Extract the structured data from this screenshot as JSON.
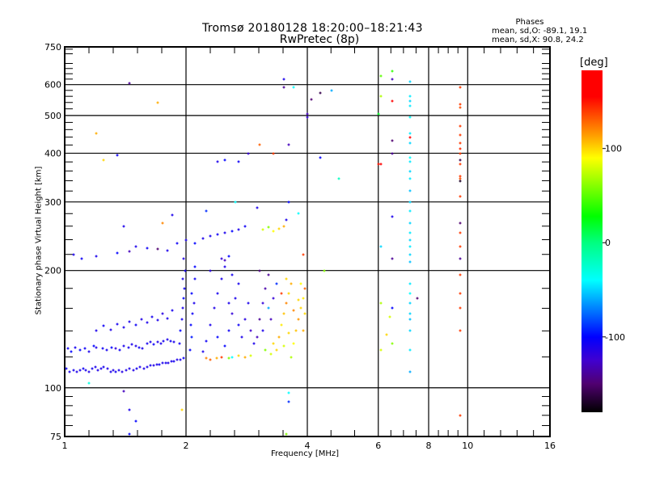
{
  "header": {
    "title_line1": "Tromsø 20180128 18:20:00–18:21:43",
    "title_line2": "RwPretec (8p)",
    "phases_heading": "Phases",
    "phases_o": "mean, sd,O:  -89.1, 19.1",
    "phases_x": "mean, sd,X:   90.8, 24.2"
  },
  "chart_data": {
    "type": "scatter",
    "title": "Tromsø 20180128 18:20:00–18:21:43 RwPretec (8p)",
    "xlabel": "Frequency [MHz]",
    "ylabel": "Stationary phase Virtual Height [km]",
    "xscale": "log",
    "yscale": "log",
    "xlim": [
      1,
      16
    ],
    "ylim": [
      75,
      750
    ],
    "xticks": [
      1,
      2,
      4,
      6,
      8,
      10,
      16
    ],
    "yticks": [
      75,
      100,
      200,
      300,
      400,
      500,
      600,
      750
    ],
    "xgrid": [
      2,
      4,
      6,
      8,
      10
    ],
    "ygrid": [
      100,
      200,
      300,
      400,
      500,
      600
    ],
    "grid": true,
    "colorbar": {
      "label": "[deg]",
      "ticks": [
        100,
        0,
        -100
      ],
      "range": [
        -180,
        183
      ],
      "stops": [
        [
          -180,
          "#000000"
        ],
        [
          -150,
          "#500070"
        ],
        [
          -125,
          "#4000d0"
        ],
        [
          -100,
          "#0000ff"
        ],
        [
          -70,
          "#0080ff"
        ],
        [
          -40,
          "#00ffff"
        ],
        [
          0,
          "#00ff80"
        ],
        [
          28,
          "#00ff00"
        ],
        [
          90,
          "#ffff00"
        ],
        [
          115,
          "#ff9900"
        ],
        [
          155,
          "#ff0000"
        ],
        [
          183,
          "#ff0000"
        ]
      ]
    },
    "point_fields": [
      "frequency_MHz",
      "height_km",
      "phase_deg"
    ],
    "points": [
      [
        1.01,
        112,
        -105
      ],
      [
        1.03,
        110,
        -110
      ],
      [
        1.05,
        111,
        -108
      ],
      [
        1.07,
        110,
        -112
      ],
      [
        1.09,
        111,
        -110
      ],
      [
        1.11,
        112,
        -105
      ],
      [
        1.13,
        111,
        -110
      ],
      [
        1.15,
        110,
        -112
      ],
      [
        1.17,
        112,
        -108
      ],
      [
        1.19,
        113,
        -110
      ],
      [
        1.21,
        111,
        -112
      ],
      [
        1.23,
        112,
        -110
      ],
      [
        1.25,
        113,
        -108
      ],
      [
        1.28,
        112,
        -112
      ],
      [
        1.3,
        110,
        -110
      ],
      [
        1.32,
        111,
        -112
      ],
      [
        1.34,
        110,
        -108
      ],
      [
        1.36,
        111,
        -110
      ],
      [
        1.39,
        110,
        -114
      ],
      [
        1.42,
        111,
        -112
      ],
      [
        1.45,
        112,
        -110
      ],
      [
        1.48,
        111,
        -112
      ],
      [
        1.51,
        112,
        -108
      ],
      [
        1.54,
        113,
        -110
      ],
      [
        1.57,
        112,
        -112
      ],
      [
        1.6,
        113,
        -110
      ],
      [
        1.63,
        114,
        -108
      ],
      [
        1.66,
        114,
        -112
      ],
      [
        1.69,
        115,
        -110
      ],
      [
        1.72,
        115,
        -105
      ],
      [
        1.75,
        116,
        -110
      ],
      [
        1.78,
        116,
        -108
      ],
      [
        1.81,
        116,
        -112
      ],
      [
        1.84,
        117,
        -110
      ],
      [
        1.87,
        117,
        -108
      ],
      [
        1.9,
        118,
        -112
      ],
      [
        1.94,
        118,
        -110
      ],
      [
        1.97,
        119,
        -105
      ],
      [
        1.02,
        126,
        -105
      ],
      [
        1.04,
        124,
        -100
      ],
      [
        1.06,
        127,
        -108
      ],
      [
        1.09,
        125,
        -100
      ],
      [
        1.12,
        126,
        -105
      ],
      [
        1.15,
        124,
        -110
      ],
      [
        1.18,
        128,
        -100
      ],
      [
        1.2,
        127,
        -112
      ],
      [
        1.24,
        126,
        -105
      ],
      [
        1.27,
        125,
        -108
      ],
      [
        1.31,
        127,
        -100
      ],
      [
        1.34,
        126,
        -120
      ],
      [
        1.37,
        125,
        -105
      ],
      [
        1.4,
        128,
        -110
      ],
      [
        1.44,
        127,
        -108
      ],
      [
        1.47,
        129,
        -110
      ],
      [
        1.5,
        128,
        -112
      ],
      [
        1.53,
        127,
        -105
      ],
      [
        1.56,
        126,
        -110
      ],
      [
        1.6,
        130,
        -108
      ],
      [
        1.63,
        131,
        -110
      ],
      [
        1.66,
        129,
        -105
      ],
      [
        1.7,
        131,
        -112
      ],
      [
        1.73,
        130,
        -110
      ],
      [
        1.76,
        132,
        -108
      ],
      [
        1.8,
        133,
        -110
      ],
      [
        1.83,
        132,
        -105
      ],
      [
        1.87,
        131,
        -110
      ],
      [
        1.2,
        140,
        -110
      ],
      [
        1.25,
        144,
        -105
      ],
      [
        1.3,
        141,
        -112
      ],
      [
        1.35,
        146,
        -108
      ],
      [
        1.4,
        143,
        -110
      ],
      [
        1.45,
        148,
        -110
      ],
      [
        1.5,
        145,
        -105
      ],
      [
        1.55,
        150,
        -112
      ],
      [
        1.6,
        147,
        -110
      ],
      [
        1.65,
        152,
        -108
      ],
      [
        1.7,
        149,
        -110
      ],
      [
        1.75,
        155,
        -115
      ],
      [
        1.8,
        151,
        -110
      ],
      [
        1.85,
        158,
        -108
      ],
      [
        1.93,
        130,
        -105
      ],
      [
        1.94,
        140,
        -100
      ],
      [
        1.95,
        150,
        -108
      ],
      [
        1.96,
        160,
        -110
      ],
      [
        1.97,
        170,
        -100
      ],
      [
        1.98,
        180,
        -105
      ],
      [
        1.96,
        190,
        -110
      ],
      [
        1.99,
        200,
        -108
      ],
      [
        1.97,
        215,
        -112
      ],
      [
        2.05,
        125,
        -100
      ],
      [
        2.07,
        135,
        -95
      ],
      [
        2.06,
        145,
        -100
      ],
      [
        2.08,
        155,
        -105
      ],
      [
        2.09,
        165,
        -110
      ],
      [
        2.07,
        175,
        -100
      ],
      [
        2.1,
        190,
        -105
      ],
      [
        2.1,
        205,
        -100
      ],
      [
        2.2,
        124,
        -110
      ],
      [
        2.25,
        132,
        -105
      ],
      [
        2.3,
        145,
        -110
      ],
      [
        2.35,
        160,
        -112
      ],
      [
        2.4,
        175,
        -108
      ],
      [
        2.45,
        190,
        -110
      ],
      [
        2.5,
        128,
        -100
      ],
      [
        2.55,
        140,
        -105
      ],
      [
        2.6,
        155,
        -120
      ],
      [
        2.65,
        170,
        -110
      ],
      [
        2.7,
        185,
        -108
      ],
      [
        2.75,
        135,
        -110
      ],
      [
        2.8,
        150,
        -115
      ],
      [
        2.85,
        165,
        -110
      ],
      [
        2.9,
        140,
        -125
      ],
      [
        2.95,
        130,
        -110
      ],
      [
        2.3,
        200,
        -115
      ],
      [
        2.5,
        205,
        -110
      ],
      [
        2.45,
        215,
        -120
      ],
      [
        2.6,
        195,
        -108
      ],
      [
        2.4,
        135,
        -100
      ],
      [
        2.55,
        165,
        -110
      ],
      [
        2.7,
        145,
        -105
      ],
      [
        2.25,
        119,
        120
      ],
      [
        2.3,
        118,
        130
      ],
      [
        2.38,
        119,
        110
      ],
      [
        2.45,
        120,
        140
      ],
      [
        2.55,
        119,
        60
      ],
      [
        2.6,
        120,
        -40
      ],
      [
        2.7,
        121,
        100
      ],
      [
        2.8,
        120,
        110
      ],
      [
        2.9,
        121,
        80
      ],
      [
        3.0,
        135,
        -130
      ],
      [
        3.05,
        150,
        -140
      ],
      [
        3.1,
        165,
        -120
      ],
      [
        3.15,
        180,
        -135
      ],
      [
        3.2,
        195,
        -140
      ],
      [
        3.1,
        140,
        -110
      ],
      [
        3.25,
        150,
        -130
      ],
      [
        3.3,
        170,
        -120
      ],
      [
        3.35,
        185,
        -90
      ],
      [
        3.15,
        125,
        60
      ],
      [
        3.25,
        122,
        80
      ],
      [
        3.3,
        130,
        100
      ],
      [
        3.05,
        200,
        -145
      ],
      [
        3.2,
        160,
        -60
      ],
      [
        3.35,
        125,
        100
      ],
      [
        3.4,
        135,
        110
      ],
      [
        3.45,
        145,
        95
      ],
      [
        3.5,
        155,
        105
      ],
      [
        3.55,
        165,
        120
      ],
      [
        3.6,
        175,
        100
      ],
      [
        3.65,
        185,
        110
      ],
      [
        3.7,
        130,
        90
      ],
      [
        3.75,
        140,
        105
      ],
      [
        3.8,
        150,
        115
      ],
      [
        3.85,
        160,
        100
      ],
      [
        3.9,
        170,
        95
      ],
      [
        3.95,
        180,
        130
      ],
      [
        3.5,
        128,
        80
      ],
      [
        3.6,
        138,
        100
      ],
      [
        3.7,
        158,
        120
      ],
      [
        3.8,
        168,
        100
      ],
      [
        3.9,
        140,
        110
      ],
      [
        3.65,
        120,
        70
      ],
      [
        3.45,
        175,
        140
      ],
      [
        3.55,
        190,
        100
      ],
      [
        3.85,
        185,
        90
      ],
      [
        3.95,
        155,
        100
      ],
      [
        1.05,
        220,
        -110
      ],
      [
        1.1,
        215,
        -105
      ],
      [
        1.2,
        218,
        -110
      ],
      [
        1.35,
        222,
        -100
      ],
      [
        1.45,
        224,
        -130
      ],
      [
        1.5,
        230,
        -110
      ],
      [
        1.6,
        228,
        -105
      ],
      [
        1.7,
        227,
        -150
      ],
      [
        1.8,
        225,
        -110
      ],
      [
        1.9,
        235,
        -105
      ],
      [
        2.0,
        240,
        -110
      ],
      [
        2.1,
        235,
        -100
      ],
      [
        2.2,
        242,
        -110
      ],
      [
        2.3,
        245,
        -108
      ],
      [
        2.4,
        248,
        -105
      ],
      [
        2.5,
        250,
        -110
      ],
      [
        2.6,
        252,
        -100
      ],
      [
        2.7,
        255,
        -110
      ],
      [
        2.8,
        260,
        -105
      ],
      [
        3.1,
        255,
        80
      ],
      [
        3.2,
        258,
        60
      ],
      [
        3.3,
        252,
        90
      ],
      [
        3.4,
        256,
        100
      ],
      [
        3.5,
        260,
        110
      ],
      [
        1.75,
        265,
        120
      ],
      [
        1.85,
        278,
        -110
      ],
      [
        2.5,
        212,
        -130
      ],
      [
        2.55,
        218,
        -100
      ],
      [
        1.4,
        260,
        -110
      ],
      [
        1.35,
        395,
        -105
      ],
      [
        1.2,
        450,
        110
      ],
      [
        1.25,
        385,
        100
      ],
      [
        1.45,
        605,
        -140
      ],
      [
        1.7,
        540,
        110
      ],
      [
        2.4,
        380,
        -110
      ],
      [
        2.5,
        385,
        -100
      ],
      [
        2.7,
        380,
        -105
      ],
      [
        2.85,
        400,
        -120
      ],
      [
        3.05,
        420,
        130
      ],
      [
        3.3,
        400,
        140
      ],
      [
        3.5,
        620,
        -110
      ],
      [
        3.5,
        590,
        -140
      ],
      [
        3.7,
        590,
        -40
      ],
      [
        3.6,
        420,
        -130
      ],
      [
        3.6,
        300,
        -100
      ],
      [
        4.0,
        505,
        -130
      ],
      [
        4.0,
        495,
        -120
      ],
      [
        4.1,
        550,
        -150
      ],
      [
        4.3,
        570,
        -160
      ],
      [
        4.6,
        580,
        -60
      ],
      [
        4.3,
        390,
        -100
      ],
      [
        4.8,
        345,
        -20
      ],
      [
        4.4,
        200,
        60
      ],
      [
        3.55,
        270,
        -110
      ],
      [
        3.8,
        280,
        -40
      ],
      [
        3.9,
        220,
        140
      ],
      [
        2.25,
        285,
        -90
      ],
      [
        2.65,
        300,
        -40
      ],
      [
        3.0,
        290,
        -110
      ],
      [
        1.45,
        88,
        -110
      ],
      [
        1.5,
        82,
        -100
      ],
      [
        1.45,
        76,
        -100
      ],
      [
        1.95,
        88,
        100
      ],
      [
        3.6,
        97,
        -40
      ],
      [
        3.6,
        92,
        -90
      ],
      [
        3.55,
        76,
        60
      ],
      [
        1.4,
        98,
        -130
      ],
      [
        1.15,
        103,
        -30
      ],
      [
        6.1,
        630,
        50
      ],
      [
        6.1,
        560,
        70
      ],
      [
        6.0,
        505,
        20
      ],
      [
        6.1,
        375,
        160
      ],
      [
        6.1,
        230,
        -50
      ],
      [
        6.1,
        125,
        80
      ],
      [
        6.1,
        165,
        70
      ],
      [
        6.0,
        375,
        150
      ],
      [
        6.5,
        650,
        40
      ],
      [
        6.5,
        620,
        -130
      ],
      [
        6.5,
        545,
        160
      ],
      [
        6.5,
        430,
        -150
      ],
      [
        6.5,
        400,
        -140
      ],
      [
        6.5,
        275,
        -110
      ],
      [
        6.5,
        215,
        -140
      ],
      [
        6.5,
        160,
        -100
      ],
      [
        6.4,
        152,
        80
      ],
      [
        6.3,
        137,
        100
      ],
      [
        6.5,
        130,
        60
      ],
      [
        7.2,
        610,
        -50
      ],
      [
        7.2,
        560,
        -45
      ],
      [
        7.2,
        545,
        -50
      ],
      [
        7.2,
        530,
        -45
      ],
      [
        7.2,
        495,
        -40
      ],
      [
        7.2,
        450,
        -45
      ],
      [
        7.2,
        425,
        -50
      ],
      [
        7.2,
        440,
        170
      ],
      [
        7.2,
        390,
        -40
      ],
      [
        7.2,
        380,
        -45
      ],
      [
        7.2,
        360,
        -50
      ],
      [
        7.2,
        345,
        -45
      ],
      [
        7.2,
        320,
        -55
      ],
      [
        7.2,
        300,
        -50
      ],
      [
        7.2,
        285,
        -45
      ],
      [
        7.2,
        265,
        -50
      ],
      [
        7.2,
        250,
        -45
      ],
      [
        7.2,
        240,
        -50
      ],
      [
        7.2,
        230,
        -45
      ],
      [
        7.2,
        220,
        -50
      ],
      [
        7.2,
        210,
        -55
      ],
      [
        7.2,
        185,
        -45
      ],
      [
        7.2,
        175,
        -40
      ],
      [
        7.2,
        165,
        -50
      ],
      [
        7.2,
        155,
        -50
      ],
      [
        7.2,
        150,
        -55
      ],
      [
        7.2,
        140,
        -50
      ],
      [
        7.2,
        125,
        -45
      ],
      [
        7.2,
        110,
        -60
      ],
      [
        7.5,
        170,
        -150
      ],
      [
        9.6,
        590,
        140
      ],
      [
        9.6,
        535,
        140
      ],
      [
        9.6,
        525,
        135
      ],
      [
        9.6,
        470,
        140
      ],
      [
        9.6,
        445,
        140
      ],
      [
        9.6,
        425,
        140
      ],
      [
        9.6,
        410,
        145
      ],
      [
        9.6,
        400,
        140
      ],
      [
        9.6,
        375,
        140
      ],
      [
        9.6,
        350,
        140
      ],
      [
        9.6,
        345,
        135
      ],
      [
        9.6,
        310,
        140
      ],
      [
        9.6,
        250,
        140
      ],
      [
        9.6,
        230,
        140
      ],
      [
        9.6,
        195,
        140
      ],
      [
        9.6,
        175,
        140
      ],
      [
        9.6,
        160,
        140
      ],
      [
        9.6,
        140,
        140
      ],
      [
        9.6,
        85,
        140
      ],
      [
        9.6,
        385,
        -160
      ],
      [
        9.6,
        340,
        -170
      ],
      [
        9.6,
        265,
        -150
      ],
      [
        9.6,
        215,
        -140
      ]
    ]
  }
}
